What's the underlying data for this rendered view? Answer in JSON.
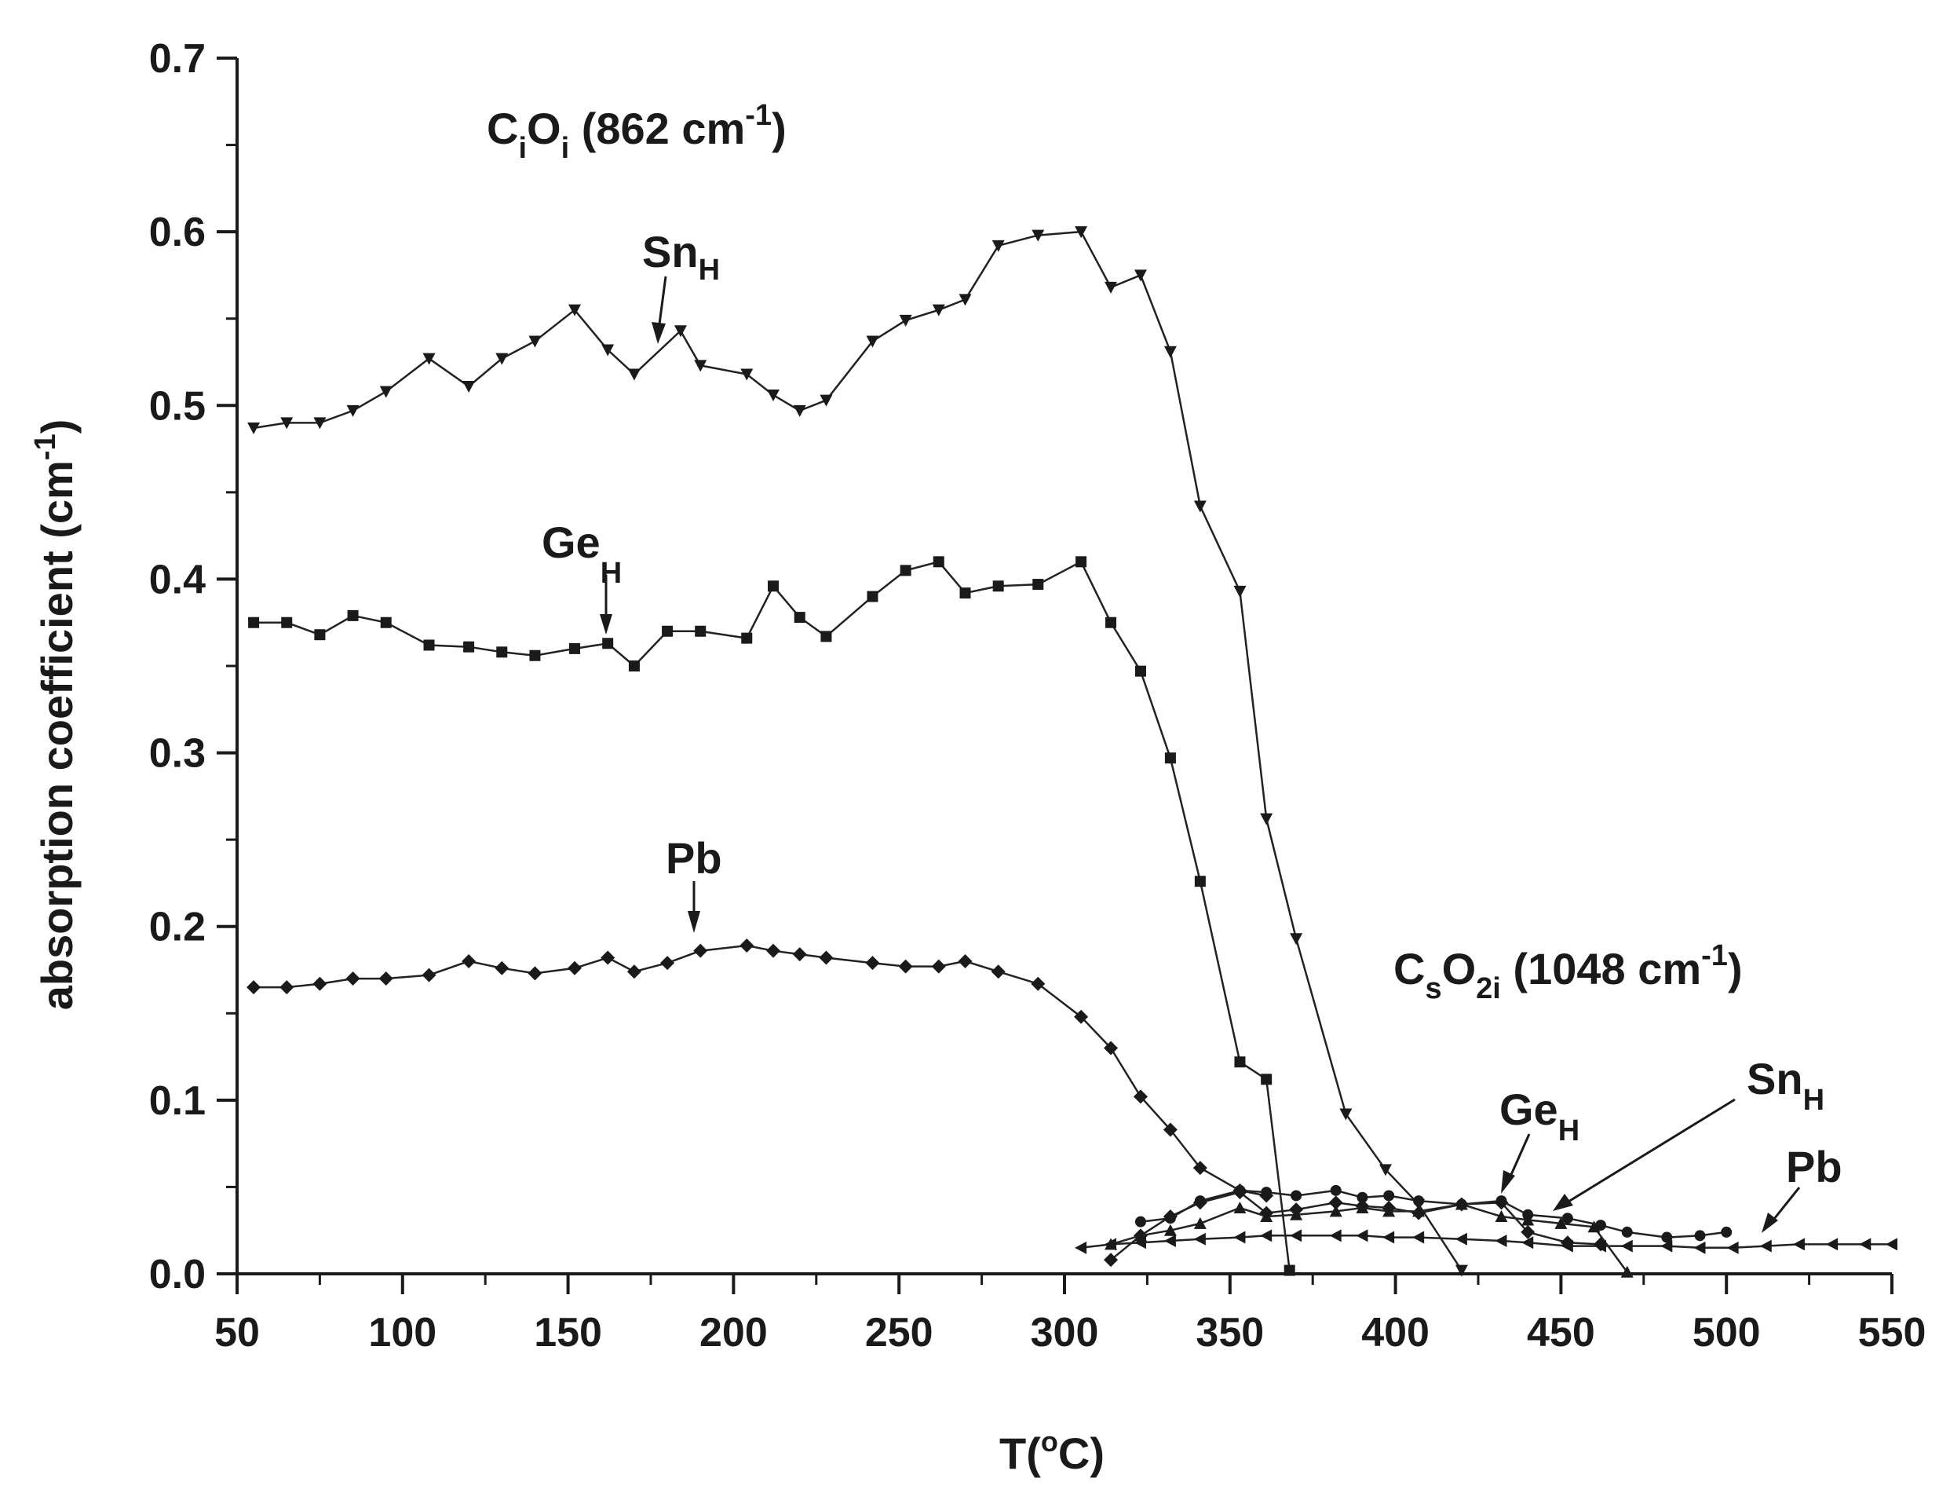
{
  "chart_data": {
    "type": "line",
    "xlabel": "T(°C)",
    "ylabel": "absorption coefficient (cm⁻¹)",
    "xlim": [
      50,
      550
    ],
    "ylim": [
      0,
      0.7
    ],
    "xticks": [
      "50",
      "100",
      "150",
      "200",
      "250",
      "300",
      "350",
      "400",
      "450",
      "500",
      "550"
    ],
    "yticks": [
      "0.0",
      "0.1",
      "0.2",
      "0.3",
      "0.4",
      "0.5",
      "0.6",
      "0.7"
    ],
    "grid": false,
    "annotations": {
      "cioi": {
        "text": "CiOi (862 cm-1)",
        "c": "C",
        "sub1": "i",
        "o": "O",
        "sub2": "i",
        "rest": " (862 cm",
        "sup": "-1",
        "close": ")"
      },
      "cso2i": {
        "text": "CsO2i (1048 cm-1)",
        "c": "C",
        "sub1": "s",
        "o": "O",
        "sub2": "2i",
        "rest": " (1048 cm",
        "sup": "-1",
        "close": ")"
      },
      "sn_top": {
        "main": "Sn",
        "sub": "H"
      },
      "ge_top": {
        "main": "Ge",
        "sub": "H"
      },
      "pb_top": {
        "main": "Pb"
      },
      "ge_bottom": {
        "main": "Ge",
        "sub": "H"
      },
      "sn_bottom": {
        "main": "Sn",
        "sub": "H"
      },
      "pb_bottom": {
        "main": "Pb"
      }
    },
    "series": [
      {
        "id": "ci_sn",
        "marker": "triangle-down",
        "group": "CiOi",
        "label": "SnH",
        "x": [
          55,
          65,
          75,
          85,
          95,
          108,
          120,
          130,
          140,
          152,
          162,
          170,
          184,
          190,
          204,
          212,
          220,
          228,
          242,
          252,
          262,
          270,
          280,
          292,
          305,
          314,
          323,
          332,
          341,
          353,
          361,
          370,
          385,
          397,
          407,
          420
        ],
        "y": [
          0.487,
          0.49,
          0.49,
          0.497,
          0.508,
          0.527,
          0.511,
          0.527,
          0.537,
          0.555,
          0.532,
          0.518,
          0.543,
          0.523,
          0.518,
          0.506,
          0.497,
          0.503,
          0.537,
          0.549,
          0.555,
          0.561,
          0.592,
          0.598,
          0.6,
          0.568,
          0.575,
          0.531,
          0.442,
          0.393,
          0.262,
          0.193,
          0.092,
          0.06,
          0.04,
          0.002
        ]
      },
      {
        "id": "ci_ge",
        "marker": "square",
        "group": "CiOi",
        "label": "GeH",
        "x": [
          55,
          65,
          75,
          85,
          95,
          108,
          120,
          130,
          140,
          152,
          162,
          170,
          180,
          190,
          204,
          212,
          220,
          228,
          242,
          252,
          262,
          270,
          280,
          292,
          305,
          314,
          323,
          332,
          341,
          353,
          361,
          368
        ],
        "y": [
          0.375,
          0.375,
          0.368,
          0.379,
          0.375,
          0.362,
          0.361,
          0.358,
          0.356,
          0.36,
          0.363,
          0.35,
          0.37,
          0.37,
          0.366,
          0.396,
          0.378,
          0.367,
          0.39,
          0.405,
          0.41,
          0.392,
          0.396,
          0.397,
          0.41,
          0.375,
          0.347,
          0.297,
          0.226,
          0.122,
          0.112,
          0.002
        ]
      },
      {
        "id": "ci_pb",
        "marker": "diamond",
        "group": "CiOi",
        "label": "Pb",
        "x": [
          55,
          65,
          75,
          85,
          95,
          108,
          120,
          130,
          140,
          152,
          162,
          170,
          180,
          190,
          204,
          212,
          220,
          228,
          242,
          252,
          262,
          270,
          280,
          292,
          305,
          314,
          323,
          332,
          341,
          353,
          361
        ],
        "y": [
          0.165,
          0.165,
          0.167,
          0.17,
          0.17,
          0.172,
          0.18,
          0.176,
          0.173,
          0.176,
          0.182,
          0.174,
          0.179,
          0.186,
          0.189,
          0.186,
          0.184,
          0.182,
          0.179,
          0.177,
          0.177,
          0.18,
          0.174,
          0.167,
          0.148,
          0.13,
          0.102,
          0.083,
          0.061,
          0.048,
          0.045
        ]
      },
      {
        "id": "cs_ge",
        "marker": "diamond",
        "group": "CsO2i",
        "label": "GeH",
        "x": [
          314,
          323,
          332,
          341,
          353,
          361,
          370,
          382,
          390,
          398,
          407,
          420,
          432,
          440,
          452,
          462
        ],
        "y": [
          0.008,
          0.022,
          0.033,
          0.041,
          0.047,
          0.035,
          0.037,
          0.041,
          0.039,
          0.038,
          0.035,
          0.04,
          0.041,
          0.024,
          0.018,
          0.017
        ]
      },
      {
        "id": "cs_sn",
        "marker": "triangle-up",
        "group": "CsO2i",
        "label": "SnH",
        "x": [
          314,
          323,
          332,
          341,
          353,
          361,
          370,
          382,
          390,
          398,
          407,
          420,
          432,
          440,
          450,
          460,
          470
        ],
        "y": [
          0.017,
          0.022,
          0.025,
          0.029,
          0.038,
          0.033,
          0.034,
          0.036,
          0.038,
          0.036,
          0.036,
          0.04,
          0.033,
          0.031,
          0.029,
          0.027,
          0.001
        ]
      },
      {
        "id": "cs_pb",
        "marker": "triangle-left",
        "group": "CsO2i",
        "label": "Pb",
        "x": [
          305,
          314,
          323,
          332,
          341,
          353,
          361,
          370,
          382,
          390,
          398,
          407,
          420,
          432,
          440,
          452,
          462,
          470,
          482,
          492,
          502,
          512,
          522,
          532,
          542,
          550
        ],
        "y": [
          0.015,
          0.017,
          0.018,
          0.019,
          0.02,
          0.021,
          0.022,
          0.022,
          0.022,
          0.022,
          0.021,
          0.021,
          0.02,
          0.019,
          0.018,
          0.016,
          0.016,
          0.016,
          0.016,
          0.015,
          0.015,
          0.016,
          0.017,
          0.017,
          0.017,
          0.017
        ]
      },
      {
        "id": "cs_extra",
        "marker": "circle",
        "group": "CsO2i",
        "label": "",
        "x": [
          323,
          332,
          341,
          353,
          361,
          370,
          382,
          390,
          398,
          407,
          420,
          432,
          440,
          452,
          462,
          470,
          482,
          492,
          500
        ],
        "y": [
          0.03,
          0.032,
          0.042,
          0.048,
          0.047,
          0.045,
          0.048,
          0.044,
          0.045,
          0.042,
          0.04,
          0.042,
          0.034,
          0.032,
          0.028,
          0.024,
          0.021,
          0.022,
          0.024
        ]
      }
    ]
  }
}
